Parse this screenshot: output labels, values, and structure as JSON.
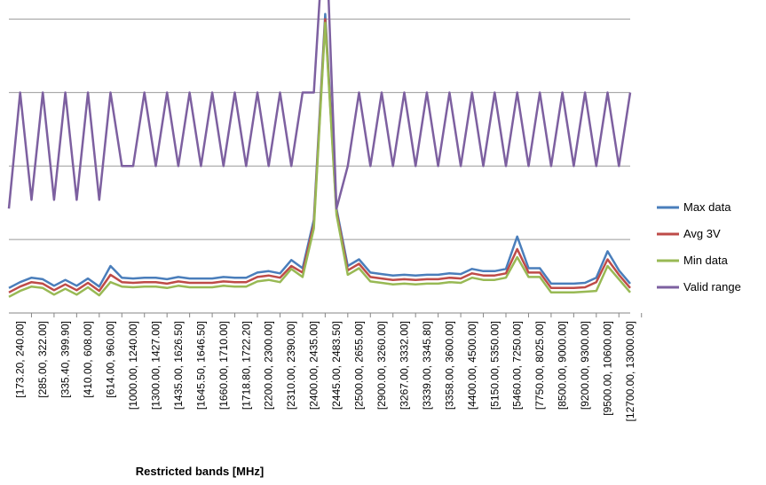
{
  "chart_data": {
    "type": "line",
    "x_label": "Restricted bands [MHz]",
    "categories": [
      null,
      "[173.20, 240.00]",
      null,
      "[285.00, 322.00]",
      null,
      "[335.40, 399.90]",
      null,
      "[410.00, 608.00]",
      null,
      "[614.00, 960.00]",
      null,
      "[1000.00, 1240.00]",
      null,
      "[1300.00, 1427.00]",
      null,
      "[1435.00, 1626.50]",
      null,
      "[1645.50, 1646.50]",
      null,
      "[1660.00, 1710.00]",
      null,
      "[1718.80, 1722.20]",
      null,
      "[2200.00, 2300.00]",
      null,
      "[2310.00, 2390.00]",
      null,
      "[2400.00, 2435.00]",
      null,
      "[2445.00, 2483.50]",
      null,
      "[2500.00, 2655.00]",
      null,
      "[2900.00, 3260.00]",
      null,
      "[3267.00, 3332.00]",
      null,
      "[3339.00, 3345.80]",
      null,
      "[3358.00, 3600.00]",
      null,
      "[4400.00, 4500.00]",
      null,
      "[5150.00, 5350.00]",
      null,
      "[5460.00, 7250.00]",
      null,
      "[7750.00, 8025.00]",
      null,
      "[8500.00, 9000.00]",
      null,
      "[9200.00, 9300.00]",
      null,
      "[9500.00, 10600.00]",
      null,
      "[12700.00, 13000.00]"
    ],
    "series": [
      {
        "name": "Max data",
        "color": "#4a7ebb",
        "values": [
          0.34,
          0.42,
          0.48,
          0.46,
          0.37,
          0.45,
          0.37,
          0.47,
          0.36,
          0.64,
          0.48,
          0.47,
          0.48,
          0.48,
          0.46,
          0.49,
          0.47,
          0.47,
          0.47,
          0.49,
          0.48,
          0.48,
          0.55,
          0.57,
          0.54,
          0.72,
          0.61,
          1.27,
          4.07,
          1.42,
          0.64,
          0.73,
          0.55,
          0.53,
          0.51,
          0.52,
          0.51,
          0.52,
          0.52,
          0.54,
          0.53,
          0.6,
          0.57,
          0.57,
          0.6,
          1.04,
          0.61,
          0.61,
          0.4,
          0.4,
          0.4,
          0.41,
          0.48,
          0.84,
          0.58,
          0.4
        ]
      },
      {
        "name": "Avg 3V",
        "color": "#be4b48",
        "values": [
          0.28,
          0.36,
          0.42,
          0.4,
          0.31,
          0.39,
          0.31,
          0.41,
          0.3,
          0.52,
          0.42,
          0.41,
          0.42,
          0.42,
          0.4,
          0.43,
          0.41,
          0.41,
          0.41,
          0.43,
          0.42,
          0.42,
          0.49,
          0.51,
          0.48,
          0.64,
          0.55,
          1.21,
          4.0,
          1.38,
          0.58,
          0.67,
          0.49,
          0.47,
          0.45,
          0.46,
          0.45,
          0.46,
          0.46,
          0.48,
          0.47,
          0.54,
          0.51,
          0.51,
          0.54,
          0.87,
          0.55,
          0.55,
          0.34,
          0.34,
          0.34,
          0.35,
          0.42,
          0.73,
          0.52,
          0.34
        ]
      },
      {
        "name": "Min data",
        "color": "#98b954",
        "values": [
          0.22,
          0.3,
          0.36,
          0.34,
          0.25,
          0.33,
          0.25,
          0.35,
          0.24,
          0.42,
          0.36,
          0.35,
          0.36,
          0.36,
          0.34,
          0.37,
          0.35,
          0.35,
          0.35,
          0.37,
          0.36,
          0.36,
          0.43,
          0.45,
          0.42,
          0.6,
          0.49,
          1.15,
          3.95,
          1.34,
          0.52,
          0.61,
          0.43,
          0.41,
          0.39,
          0.4,
          0.39,
          0.4,
          0.4,
          0.42,
          0.41,
          0.48,
          0.45,
          0.45,
          0.48,
          0.76,
          0.49,
          0.49,
          0.28,
          0.28,
          0.28,
          0.29,
          0.3,
          0.64,
          0.46,
          0.28
        ]
      },
      {
        "name": "Valid range",
        "color": "#7d60a0",
        "values": [
          1.42,
          3,
          1.54,
          3,
          1.54,
          3,
          1.54,
          3,
          1.54,
          3,
          2,
          2,
          3,
          2,
          3,
          2,
          3,
          2,
          3,
          2,
          3,
          2,
          3,
          2,
          3,
          2,
          3,
          3,
          5.5,
          1.42,
          2,
          3,
          2,
          3,
          2,
          3,
          2,
          3,
          2,
          3,
          2,
          3,
          2,
          3,
          2,
          3,
          2,
          3,
          2,
          3,
          2,
          3,
          2,
          3,
          2,
          3
        ]
      }
    ],
    "ylim": [
      0,
      4.2
    ],
    "yticks": [
      0,
      1,
      2,
      3,
      4
    ],
    "grid": true,
    "legend": "right"
  }
}
